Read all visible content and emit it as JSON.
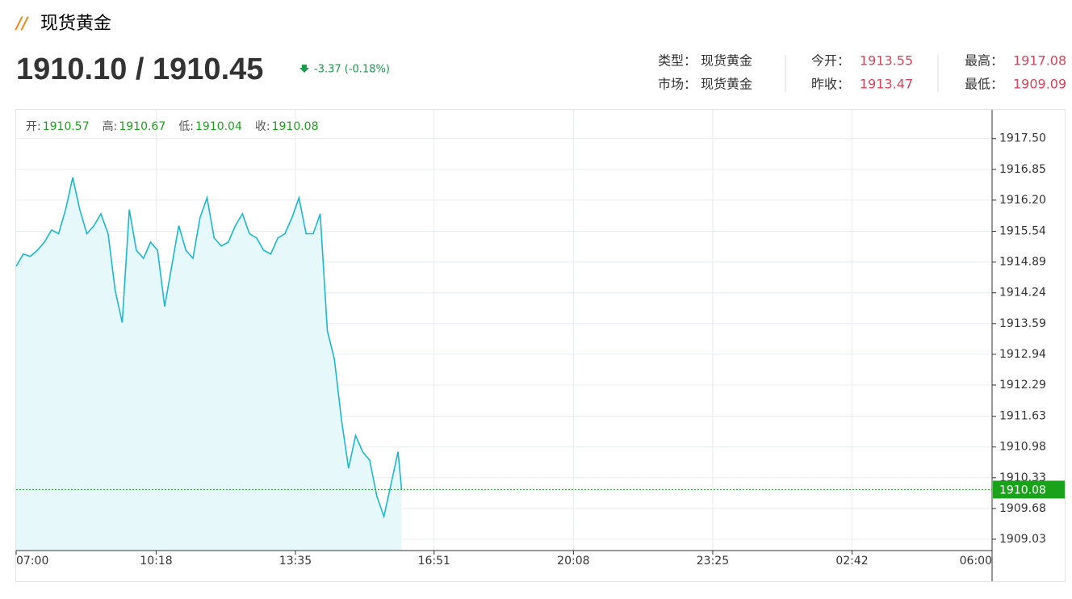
{
  "header": {
    "title": "现货黄金",
    "price": "1910.10 / 1910.45",
    "change": "-3.37 (-0.18%)",
    "info": [
      [
        {
          "label": "类型：",
          "value": "现货黄金"
        },
        {
          "label": "今开：",
          "value": "1913.55"
        },
        {
          "label": "最高：",
          "value": "1917.08"
        }
      ],
      [
        {
          "label": "市场：",
          "value": "现货黄金"
        },
        {
          "label": "昨收：",
          "value": "1913.47"
        },
        {
          "label": "最低：",
          "value": "1909.09"
        }
      ]
    ]
  },
  "chart_data": {
    "type": "line",
    "ohlc": [
      {
        "label": "开:",
        "value": "1910.57"
      },
      {
        "label": "高:",
        "value": "1910.67"
      },
      {
        "label": "低:",
        "value": "1910.04"
      },
      {
        "label": "收:",
        "value": "1910.08"
      }
    ],
    "x": [
      "07:00",
      "07:10",
      "07:20",
      "07:30",
      "07:40",
      "07:50",
      "08:00",
      "08:10",
      "08:20",
      "08:30",
      "08:40",
      "08:50",
      "09:00",
      "09:10",
      "09:20",
      "09:30",
      "09:40",
      "09:50",
      "10:00",
      "10:10",
      "10:20",
      "10:30",
      "10:40",
      "10:50",
      "11:00",
      "11:10",
      "11:20",
      "11:30",
      "11:40",
      "11:50",
      "12:00",
      "12:10",
      "12:20",
      "12:30",
      "12:40",
      "12:50",
      "13:00",
      "13:10",
      "13:20",
      "13:30",
      "13:40",
      "13:50",
      "14:00",
      "14:10",
      "14:20",
      "14:30",
      "14:40",
      "14:50",
      "15:00",
      "15:10",
      "15:20",
      "15:30",
      "15:40",
      "15:50",
      "16:00",
      "16:05"
    ],
    "values": [
      1914.8,
      1915.06,
      1915.01,
      1915.14,
      1915.31,
      1915.57,
      1915.49,
      1916.0,
      1916.68,
      1916.0,
      1915.49,
      1915.66,
      1915.91,
      1915.49,
      1914.29,
      1913.61,
      1916.0,
      1915.14,
      1914.97,
      1915.31,
      1915.14,
      1913.95,
      1914.8,
      1915.66,
      1915.14,
      1914.97,
      1915.83,
      1916.25,
      1915.4,
      1915.23,
      1915.31,
      1915.66,
      1915.91,
      1915.49,
      1915.4,
      1915.14,
      1915.06,
      1915.4,
      1915.49,
      1915.83,
      1916.25,
      1915.49,
      1915.49,
      1915.91,
      1913.44,
      1912.84,
      1911.56,
      1910.53,
      1911.22,
      1910.88,
      1910.7,
      1909.94,
      1909.51,
      1910.19,
      1910.88,
      1910.08
    ],
    "color": "#1ab8d0",
    "area_color": "#e6f8fa",
    "xlim": [
      "07:00",
      "06:00"
    ],
    "xticks": [
      "07:00",
      "10:18",
      "13:35",
      "16:51",
      "20:08",
      "23:25",
      "02:42",
      "06:00"
    ],
    "ylim": [
      1908.79,
      1918.11
    ],
    "yticks": [
      1909.03,
      1909.68,
      1910.33,
      1910.98,
      1911.63,
      1912.29,
      1912.94,
      1913.59,
      1914.24,
      1914.89,
      1915.54,
      {
        "value": 1916.2,
        "label": "1916.20"
      },
      1916.85,
      {
        "value": 1917.5,
        "label": "1917.50"
      }
    ],
    "last_value": 1910.08,
    "last_color": "#1aa31a",
    "grid": true
  }
}
